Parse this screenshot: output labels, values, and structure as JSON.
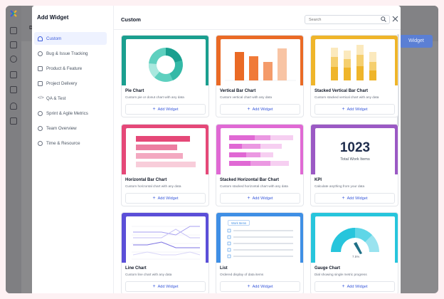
{
  "background": {
    "page_title": "Da",
    "add_widget_button": "Widget",
    "colors": {
      "rail": "#7f7f82",
      "accent": "#5b7fd4"
    }
  },
  "rail": {
    "icons": [
      "app-logo-icon",
      "home-icon",
      "grid-icon",
      "analytics-icon",
      "gear-users-icon",
      "report-icon",
      "star-icon",
      "document-icon"
    ]
  },
  "modal": {
    "title": "Add Widget",
    "categories": [
      {
        "label": "Custom",
        "icon": "star-icon",
        "active": true
      },
      {
        "label": "Bug & Issue Tracking",
        "icon": "bug-icon",
        "active": false
      },
      {
        "label": "Product & Feature",
        "icon": "list-icon",
        "active": false
      },
      {
        "label": "Project Delivery",
        "icon": "folder-icon",
        "active": false
      },
      {
        "label": "QA & Test",
        "icon": "code-icon",
        "active": false
      },
      {
        "label": "Sprint & Agile Metrics",
        "icon": "sprint-icon",
        "active": false
      },
      {
        "label": "Team Overview",
        "icon": "team-icon",
        "active": false
      },
      {
        "label": "Time & Resource",
        "icon": "clock-icon",
        "active": false
      }
    ],
    "main": {
      "title": "Custom",
      "search_placeholder": "Search",
      "cards": [
        {
          "title": "Pie Chart",
          "desc": "Custom pie or donut chart with any data",
          "button": "Add Widget",
          "color": "#1a9f8f"
        },
        {
          "title": "Vertical Bar Chart",
          "desc": "Custom vertical chart with any data",
          "button": "Add Widget",
          "color": "#ea6a25"
        },
        {
          "title": "Stacked Vertical Bar Chart",
          "desc": "Custom stacked vertical chart with any data",
          "button": "Add Widget",
          "color": "#efb52a"
        },
        {
          "title": "Horizontal Bar Chart",
          "desc": "Custom horizontal chart with any data",
          "button": "Add Widget",
          "color": "#e54878"
        },
        {
          "title": "Stacked Horizontal Bar Chart",
          "desc": "Custom stacked horizontal chart with any data",
          "button": "Add Widget",
          "color": "#e069d4"
        },
        {
          "title": "KPI",
          "desc": "Calculate anything from your data",
          "button": "Add Widget",
          "color": "#9b59c4",
          "kpi_value": "1023",
          "kpi_label": "Total Work Items"
        },
        {
          "title": "Line Chart",
          "desc": "Custom line chart with any data",
          "button": "Add Widget",
          "color": "#5b4fd8"
        },
        {
          "title": "List",
          "desc": "Ordered display of data items",
          "button": "Add Widget",
          "color": "#3f8fe5",
          "list_header": "Work Items"
        },
        {
          "title": "Gauge Chart",
          "desc": "Dial showing single metric progress",
          "button": "Add Widget",
          "color": "#27c5dc",
          "gauge_value": "7.5%"
        }
      ]
    }
  }
}
